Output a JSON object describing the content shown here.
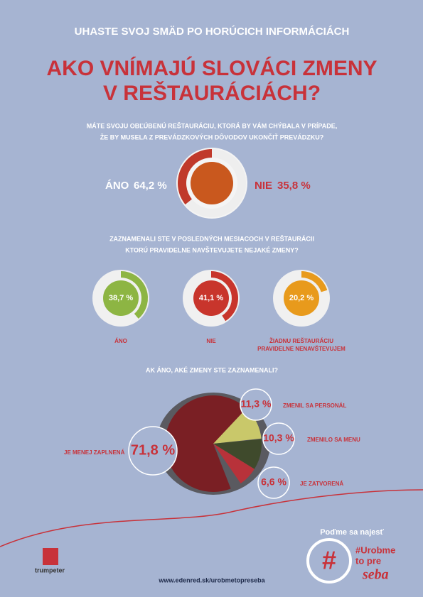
{
  "header": {
    "kicker": "UHASTE SVOJ SMÄD PO HORÚCICH INFORMÁCIÁCH",
    "title": [
      "AKO VNÍMAJÚ SLOVÁCI ZMENY",
      "V REŠTAURÁCIÁCH?"
    ]
  },
  "chart_data": [
    {
      "type": "pie",
      "title": [
        "MÁTE SVOJU OBĽÚBENÚ REŠTAURÁCIU, KTORÁ BY VÁM CHÝBALA V PRÍPADE,",
        "ŽE BY MUSELA Z PREVÁDZKOVÝCH DÔVODOV UKONČIŤ PREVÁDZKU?"
      ],
      "categories": [
        "ÁNO",
        "NIE"
      ],
      "values": [
        64.2,
        35.8
      ],
      "value_labels": [
        "64,2 %",
        "35,8 %"
      ],
      "colors": [
        "#eeeeee",
        "#c0392b"
      ]
    },
    {
      "type": "rings",
      "title": [
        "ZAZNAMENALI STE V POSLEDNÝCH MESIACOCH V REŠTAURÁCII",
        "KTORÚ PRAVIDELNE NAVŠTEVUJETE NEJAKÉ ZMENY?"
      ],
      "categories": [
        "ÁNO",
        "NIE",
        "ŽIADNU REŠTAURÁCIU PRAVIDELNE NENAVŠTEVUJEM"
      ],
      "values": [
        38.7,
        41.1,
        20.2
      ],
      "value_labels": [
        "38,7 %",
        "41,1 %",
        "20,2 %"
      ],
      "colors": [
        "#8db543",
        "#c8352c",
        "#e89a1c"
      ]
    },
    {
      "type": "plate",
      "title": [
        "AK ÁNO, AKÉ ZMENY STE ZAZNAMENALI?"
      ],
      "categories": [
        "JE MENEJ ZAPLNENÁ",
        "ZMENIL SA PERSONÁL",
        "ZMENILO SA MENU",
        "JE ZATVORENÁ"
      ],
      "values": [
        71.8,
        11.3,
        10.3,
        6.6
      ],
      "value_labels": [
        "71,8 %",
        "11,3 %",
        "10,3 %",
        "6,6 %"
      ],
      "colors": [
        "#7a1f24",
        "#c9c86a",
        "#3f4a2c",
        "#b8323a"
      ]
    }
  ],
  "footer": {
    "slogan": "Poďme sa najesť",
    "hashtag": [
      "#Urobme",
      "to pre",
      "seba"
    ],
    "url": "www.edenred.sk/urobmetopreseba",
    "logo": "trumpeter"
  }
}
